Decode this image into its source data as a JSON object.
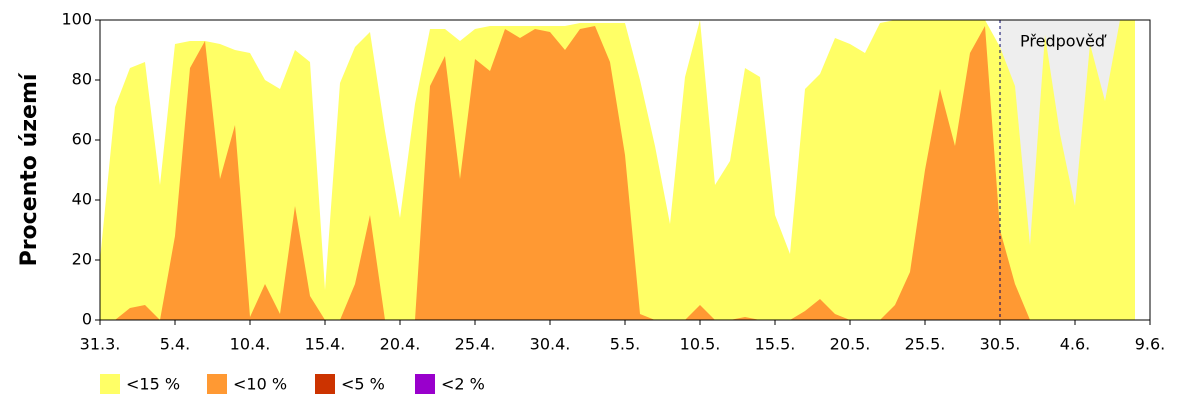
{
  "chart_data": {
    "type": "area",
    "ylabel": "Procento území",
    "annotation": "Předpověď",
    "forecast_range": [
      60,
      69
    ],
    "x": [
      0,
      1,
      2,
      3,
      4,
      5,
      6,
      7,
      8,
      9,
      10,
      11,
      12,
      13,
      14,
      15,
      16,
      17,
      18,
      19,
      20,
      21,
      22,
      23,
      24,
      25,
      26,
      27,
      28,
      29,
      30,
      31,
      32,
      33,
      34,
      35,
      36,
      37,
      38,
      39,
      40,
      41,
      42,
      43,
      44,
      45,
      46,
      47,
      48,
      49,
      50,
      51,
      52,
      53,
      54,
      55,
      56,
      57,
      58,
      59,
      60,
      61,
      62,
      63,
      64,
      65,
      66,
      67,
      68,
      69
    ],
    "xlim": [
      0,
      70
    ],
    "xticks": [
      {
        "value": 0,
        "label": "31.3."
      },
      {
        "value": 5,
        "label": "5.4."
      },
      {
        "value": 10,
        "label": "10.4."
      },
      {
        "value": 15,
        "label": "15.4."
      },
      {
        "value": 20,
        "label": "20.4."
      },
      {
        "value": 25,
        "label": "25.4."
      },
      {
        "value": 30,
        "label": "30.4."
      },
      {
        "value": 35,
        "label": "5.5."
      },
      {
        "value": 40,
        "label": "10.5."
      },
      {
        "value": 45,
        "label": "15.5."
      },
      {
        "value": 50,
        "label": "20.5."
      },
      {
        "value": 55,
        "label": "25.5."
      },
      {
        "value": 60,
        "label": "30.5."
      },
      {
        "value": 65,
        "label": "4.6."
      },
      {
        "value": 70,
        "label": "9.6."
      }
    ],
    "ylim": [
      0,
      100
    ],
    "yticks": [
      0,
      20,
      40,
      60,
      80,
      100
    ],
    "series": [
      {
        "name": "<15 %",
        "color": "#ffff66",
        "values": [
          20,
          71,
          84,
          86,
          45,
          92,
          93,
          93,
          92,
          90,
          89,
          80,
          77,
          90,
          86,
          10,
          79,
          91,
          96,
          63,
          34,
          72,
          97,
          97,
          93,
          97,
          98,
          98,
          98,
          98,
          98,
          98,
          99,
          99,
          99,
          99,
          80,
          58,
          32,
          81,
          100,
          45,
          53,
          84,
          81,
          35,
          22,
          77,
          82,
          94,
          92,
          89,
          99,
          100,
          100,
          100,
          100,
          100,
          100,
          100,
          91,
          78,
          25,
          95,
          62,
          38,
          92,
          73,
          100,
          100
        ]
      },
      {
        "name": "<10 %",
        "color": "#ff9933",
        "values": [
          0,
          0,
          4,
          5,
          0,
          28,
          84,
          93,
          47,
          65,
          1,
          12,
          2,
          38,
          8,
          0,
          0,
          12,
          35,
          0,
          0,
          0,
          78,
          88,
          47,
          87,
          83,
          97,
          94,
          97,
          96,
          90,
          97,
          98,
          86,
          55,
          2,
          0,
          0,
          0,
          5,
          0,
          0,
          1,
          0,
          0,
          0,
          3,
          7,
          2,
          0,
          0,
          0,
          5,
          16,
          50,
          77,
          58,
          89,
          98,
          30,
          12,
          0,
          0,
          0,
          0,
          0,
          0,
          0,
          0
        ]
      },
      {
        "name": "<5 %",
        "color": "#cc3300",
        "values": [
          0,
          0,
          0,
          0,
          0,
          0,
          0,
          0,
          0,
          0,
          0,
          0,
          0,
          0,
          0,
          0,
          0,
          0,
          0,
          0,
          0,
          0,
          0,
          0,
          0,
          0,
          0,
          0,
          0,
          0,
          0,
          0,
          0,
          0,
          0,
          0,
          0,
          0,
          0,
          0,
          0,
          0,
          0,
          0,
          0,
          0,
          0,
          0,
          0,
          0,
          0,
          0,
          0,
          0,
          0,
          0,
          0,
          0,
          0,
          0,
          0,
          0,
          0,
          0,
          0,
          0,
          0,
          0,
          0,
          0
        ]
      },
      {
        "name": "<2 %",
        "color": "#9900cc",
        "values": [
          0,
          0,
          0,
          0,
          0,
          0,
          0,
          0,
          0,
          0,
          0,
          0,
          0,
          0,
          0,
          0,
          0,
          0,
          0,
          0,
          0,
          0,
          0,
          0,
          0,
          0,
          0,
          0,
          0,
          0,
          0,
          0,
          0,
          0,
          0,
          0,
          0,
          0,
          0,
          0,
          0,
          0,
          0,
          0,
          0,
          0,
          0,
          0,
          0,
          0,
          0,
          0,
          0,
          0,
          0,
          0,
          0,
          0,
          0,
          0,
          0,
          0,
          0,
          0,
          0,
          0,
          0,
          0,
          0,
          0
        ]
      }
    ]
  }
}
